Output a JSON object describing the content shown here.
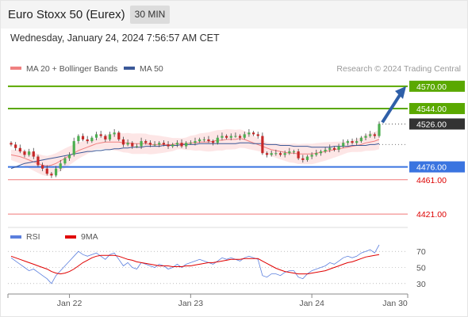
{
  "header": {
    "title": "Euro Stoxx 50 (Eurex)",
    "interval": "30 MIN",
    "datetime": "Wednesday, January 24, 2024 7:56:57 AM CET"
  },
  "colors": {
    "ma20": "#f08080",
    "ma50": "#3b5998",
    "bollinger_band": "#fde2e2",
    "resistance": "#5aa800",
    "support_current": "#3a74e0",
    "support": "#f07878",
    "current_price_box": "#333333",
    "candle_up": "#4caf50",
    "candle_down": "#c62828",
    "rsi": "#5b7fde",
    "rsi_ma": "#e00000",
    "arrow": "#2f5fa8"
  },
  "chart_data": [
    {
      "type": "candlestick",
      "title": "Euro Stoxx 50 (Eurex)",
      "legend": [
        {
          "name": "MA 20 + Bollinger Bands",
          "color": "#f08080"
        },
        {
          "name": "MA 50",
          "color": "#3b5998"
        }
      ],
      "legend_position": "top-left",
      "watermark": "Research © 2024 Trading Central",
      "ylim": [
        4410,
        4580
      ],
      "price_levels": [
        {
          "value": 4570.0,
          "label": "4570.00",
          "kind": "resistance"
        },
        {
          "value": 4544.0,
          "label": "4544.00",
          "kind": "resistance"
        },
        {
          "value": 4526.0,
          "label": "4526.00",
          "kind": "current"
        },
        {
          "value": 4476.0,
          "label": "4476.00",
          "kind": "support-current"
        },
        {
          "value": 4461.0,
          "label": "4461.00",
          "kind": "support"
        },
        {
          "value": 4421.0,
          "label": "4421.00",
          "kind": "support"
        }
      ],
      "x_ticks": [
        "Jan 22",
        "Jan 23",
        "Jan 24",
        "Jan 30"
      ],
      "x_tick_index": [
        13,
        40,
        67,
        80
      ],
      "series": [
        {
          "name": "Close",
          "values": [
            4502,
            4498,
            4494,
            4490,
            4494,
            4488,
            4478,
            4474,
            4468,
            4466,
            4474,
            4480,
            4486,
            4490,
            4506,
            4512,
            4508,
            4506,
            4510,
            4514,
            4512,
            4508,
            4514,
            4516,
            4508,
            4502,
            4504,
            4500,
            4500,
            4506,
            4504,
            4502,
            4502,
            4504,
            4502,
            4500,
            4502,
            4504,
            4500,
            4504,
            4504,
            4506,
            4508,
            4508,
            4506,
            4504,
            4510,
            4512,
            4510,
            4512,
            4512,
            4510,
            4514,
            4516,
            4514,
            4512,
            4492,
            4490,
            4492,
            4492,
            4490,
            4492,
            4494,
            4494,
            4486,
            4484,
            4488,
            4490,
            4492,
            4494,
            4496,
            4498,
            4496,
            4500,
            4504,
            4506,
            4504,
            4506,
            4510,
            4512,
            4514,
            4512,
            4526
          ]
        },
        {
          "name": "MA 20",
          "values": [
            4490,
            4489,
            4488,
            4486,
            4484,
            4482,
            4480,
            4478,
            4477,
            4478,
            4480,
            4483,
            4486,
            4489,
            4492,
            4495,
            4497,
            4499,
            4501,
            4503,
            4504,
            4505,
            4505,
            4505,
            4505,
            4504,
            4504,
            4503,
            4503,
            4503,
            4503,
            4502,
            4502,
            4502,
            4502,
            4502,
            4502,
            4503,
            4503,
            4503,
            4504,
            4504,
            4505,
            4505,
            4505,
            4506,
            4507,
            4507,
            4508,
            4508,
            4508,
            4509,
            4508,
            4506,
            4504,
            4502,
            4500,
            4498,
            4496,
            4495,
            4494,
            4493,
            4492,
            4492,
            4491,
            4491,
            4491,
            4491,
            4492,
            4493,
            4494,
            4495,
            4496,
            4497,
            4498,
            4499,
            4500,
            4501,
            4502,
            4504,
            4505,
            4506,
            4508
          ]
        },
        {
          "name": "MA 50",
          "values": [
            4474,
            4476,
            4478,
            4480,
            4481,
            4482,
            4483,
            4484,
            4485,
            4486,
            4487,
            4488,
            4489,
            4490,
            4491,
            4492,
            4493,
            4494,
            4494,
            4495,
            4495,
            4496,
            4496,
            4497,
            4497,
            4498,
            4498,
            4499,
            4499,
            4499,
            4500,
            4500,
            4500,
            4500,
            4501,
            4501,
            4501,
            4501,
            4502,
            4502,
            4502,
            4502,
            4503,
            4503,
            4503,
            4503,
            4503,
            4503,
            4503,
            4503,
            4503,
            4504,
            4504,
            4504,
            4503,
            4503,
            4503,
            4502,
            4502,
            4502,
            4501,
            4501,
            4501,
            4500,
            4500,
            4500,
            4500,
            4499,
            4499,
            4499,
            4499,
            4499,
            4500,
            4500,
            4500,
            4500,
            4501,
            4501,
            4501,
            4501,
            4502,
            4502,
            4503
          ]
        }
      ]
    },
    {
      "type": "line",
      "legend": [
        {
          "name": "RSI",
          "color": "#5b7fde"
        },
        {
          "name": "9MA",
          "color": "#e00000"
        }
      ],
      "legend_position": "top-left",
      "ylim": [
        20,
        80
      ],
      "y_ticks": [
        70,
        50,
        30
      ],
      "series": [
        {
          "name": "RSI",
          "values": [
            62,
            58,
            54,
            50,
            46,
            48,
            44,
            40,
            36,
            30,
            40,
            46,
            52,
            58,
            64,
            70,
            66,
            64,
            66,
            68,
            64,
            60,
            66,
            68,
            60,
            52,
            56,
            50,
            48,
            56,
            54,
            52,
            50,
            54,
            52,
            48,
            50,
            54,
            50,
            54,
            56,
            58,
            60,
            58,
            56,
            54,
            58,
            62,
            60,
            62,
            60,
            58,
            62,
            64,
            62,
            60,
            40,
            38,
            42,
            42,
            40,
            44,
            46,
            46,
            38,
            36,
            42,
            46,
            48,
            50,
            52,
            56,
            54,
            58,
            62,
            64,
            62,
            64,
            68,
            70,
            72,
            68,
            78
          ]
        },
        {
          "name": "9MA",
          "values": [
            64,
            62,
            60,
            58,
            56,
            54,
            52,
            50,
            48,
            45,
            43,
            42,
            43,
            45,
            48,
            52,
            56,
            59,
            62,
            64,
            65,
            65,
            65,
            65,
            64,
            62,
            60,
            59,
            57,
            56,
            55,
            54,
            53,
            52,
            52,
            52,
            51,
            51,
            51,
            52,
            52,
            53,
            54,
            55,
            56,
            56,
            57,
            58,
            59,
            60,
            60,
            60,
            61,
            61,
            61,
            61,
            58,
            55,
            52,
            49,
            47,
            45,
            44,
            43,
            42,
            42,
            42,
            43,
            44,
            45,
            46,
            48,
            50,
            52,
            54,
            56,
            57,
            59,
            61,
            63,
            64,
            65,
            66
          ]
        }
      ]
    }
  ]
}
